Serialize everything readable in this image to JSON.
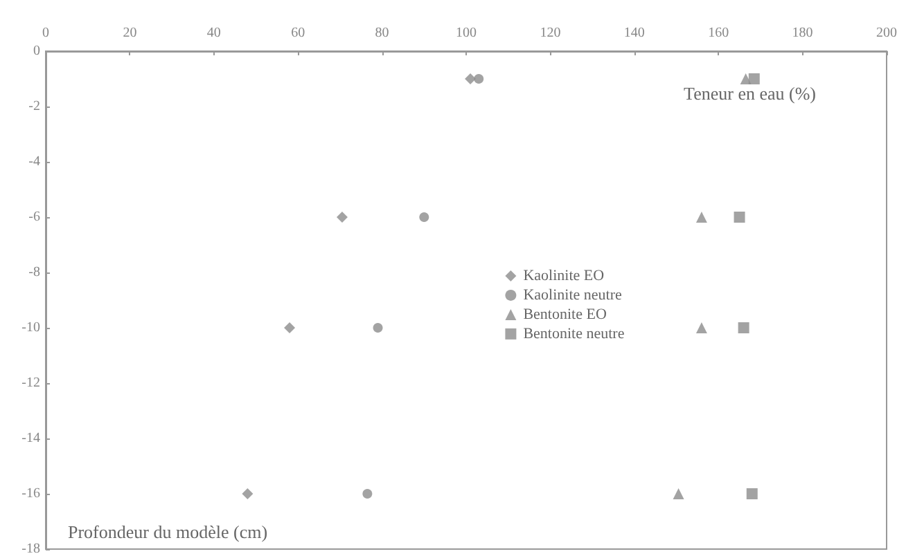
{
  "chart_data": {
    "type": "scatter",
    "xlabel": "Teneur en eau (%)",
    "ylabel": "Profondeur du modèle (cm)",
    "xlim": [
      0,
      200
    ],
    "xticks": [
      0,
      20,
      40,
      60,
      80,
      100,
      120,
      140,
      160,
      180,
      200
    ],
    "ylim": [
      -18,
      0
    ],
    "yticks": [
      -18,
      -16,
      -14,
      -12,
      -10,
      -8,
      -6,
      -4,
      -2,
      0
    ],
    "grid": false,
    "legend": "center",
    "series": [
      {
        "name": "Kaolinite EO",
        "color": "#8c8c8c",
        "marker": "diamond",
        "x": [
          101,
          70.5,
          58,
          48
        ],
        "values": [
          -1,
          -6,
          -10,
          -16
        ]
      },
      {
        "name": "Kaolinite neutre",
        "color": "#8c8c8c",
        "marker": "circle",
        "x": [
          103,
          90,
          79,
          76.5
        ],
        "values": [
          -1,
          -6,
          -10,
          -16
        ]
      },
      {
        "name": "Bentonite EO",
        "color": "#8c8c8c",
        "marker": "triangle",
        "x": [
          166.5,
          156,
          156,
          150.5
        ],
        "values": [
          -1,
          -6,
          -10,
          -16
        ]
      },
      {
        "name": "Bentonite neutre",
        "color": "#8c8c8c",
        "marker": "square",
        "x": [
          168.5,
          165,
          166,
          168
        ],
        "values": [
          -1,
          -6,
          -10,
          -16
        ]
      }
    ]
  }
}
